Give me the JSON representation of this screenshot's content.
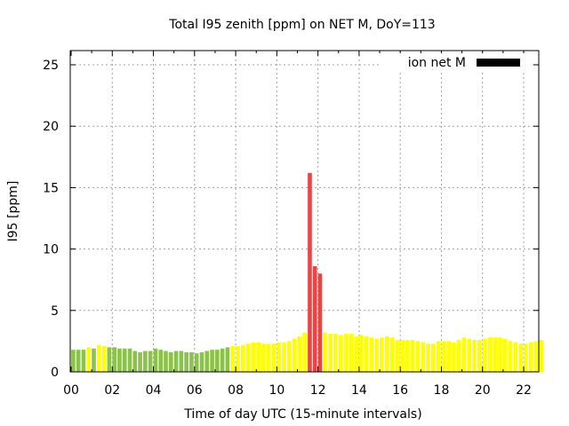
{
  "chart_data": {
    "type": "bar",
    "title": "Total I95 zenith [ppm] on NET M, DoY=113",
    "xlabel": "Time of day UTC (15-minute intervals)",
    "ylabel": "I95 [ppm]",
    "xlim": [
      0,
      22.75
    ],
    "ylim": [
      0,
      26
    ],
    "x_unit": "hours",
    "bar_interval_hours": 0.25,
    "grid": true,
    "x_ticks": [
      0,
      2,
      4,
      6,
      8,
      10,
      12,
      14,
      16,
      18,
      20,
      22
    ],
    "x_tick_labels": [
      "00",
      "02",
      "04",
      "06",
      "08",
      "10",
      "12",
      "14",
      "16",
      "18",
      "20",
      "22"
    ],
    "y_ticks": [
      0,
      5,
      10,
      15,
      20,
      25
    ],
    "y_tick_labels": [
      "0",
      "5",
      "10",
      "15",
      "20",
      "25"
    ],
    "legend": {
      "label": "ion net M",
      "color": "#000000",
      "placement": "top-right"
    },
    "colors": {
      "green": "#8bc34a",
      "yellow": "#ffff00",
      "red": "#e84545",
      "grid": "#a0a0a0",
      "axis": "#000000"
    },
    "series": [
      {
        "name": "I95",
        "values": [
          1.8,
          1.8,
          1.8,
          2.0,
          1.9,
          2.2,
          2.1,
          2.0,
          2.0,
          1.9,
          1.9,
          1.9,
          1.7,
          1.6,
          1.7,
          1.7,
          1.9,
          1.8,
          1.7,
          1.6,
          1.7,
          1.7,
          1.6,
          1.6,
          1.5,
          1.6,
          1.7,
          1.8,
          1.8,
          1.9,
          2.0,
          2.1,
          2.1,
          2.2,
          2.3,
          2.4,
          2.4,
          2.3,
          2.3,
          2.3,
          2.4,
          2.4,
          2.5,
          2.7,
          2.9,
          3.2,
          16.2,
          8.6,
          8.0,
          3.2,
          3.1,
          3.1,
          3.0,
          3.1,
          3.1,
          2.9,
          3.0,
          2.9,
          2.8,
          2.7,
          2.8,
          2.9,
          2.8,
          2.6,
          2.6,
          2.6,
          2.6,
          2.5,
          2.4,
          2.3,
          2.3,
          2.5,
          2.5,
          2.5,
          2.4,
          2.6,
          2.8,
          2.7,
          2.6,
          2.6,
          2.7,
          2.8,
          2.8,
          2.8,
          2.7,
          2.5,
          2.4,
          2.3,
          2.3,
          2.4,
          2.5,
          2.6
        ],
        "colors": [
          "green",
          "green",
          "green",
          "yellow",
          "green",
          "yellow",
          "yellow",
          "green",
          "green",
          "green",
          "green",
          "green",
          "green",
          "green",
          "green",
          "green",
          "green",
          "green",
          "green",
          "green",
          "green",
          "green",
          "green",
          "green",
          "green",
          "green",
          "green",
          "green",
          "green",
          "green",
          "green",
          "yellow",
          "yellow",
          "yellow",
          "yellow",
          "yellow",
          "yellow",
          "yellow",
          "yellow",
          "yellow",
          "yellow",
          "yellow",
          "yellow",
          "yellow",
          "yellow",
          "yellow",
          "red",
          "red",
          "red",
          "yellow",
          "yellow",
          "yellow",
          "yellow",
          "yellow",
          "yellow",
          "yellow",
          "yellow",
          "yellow",
          "yellow",
          "yellow",
          "yellow",
          "yellow",
          "yellow",
          "yellow",
          "yellow",
          "yellow",
          "yellow",
          "yellow",
          "yellow",
          "yellow",
          "yellow",
          "yellow",
          "yellow",
          "yellow",
          "yellow",
          "yellow",
          "yellow",
          "yellow",
          "yellow",
          "yellow",
          "yellow",
          "yellow",
          "yellow",
          "yellow",
          "yellow",
          "yellow",
          "yellow",
          "yellow",
          "yellow",
          "yellow",
          "yellow",
          "yellow"
        ]
      }
    ]
  }
}
